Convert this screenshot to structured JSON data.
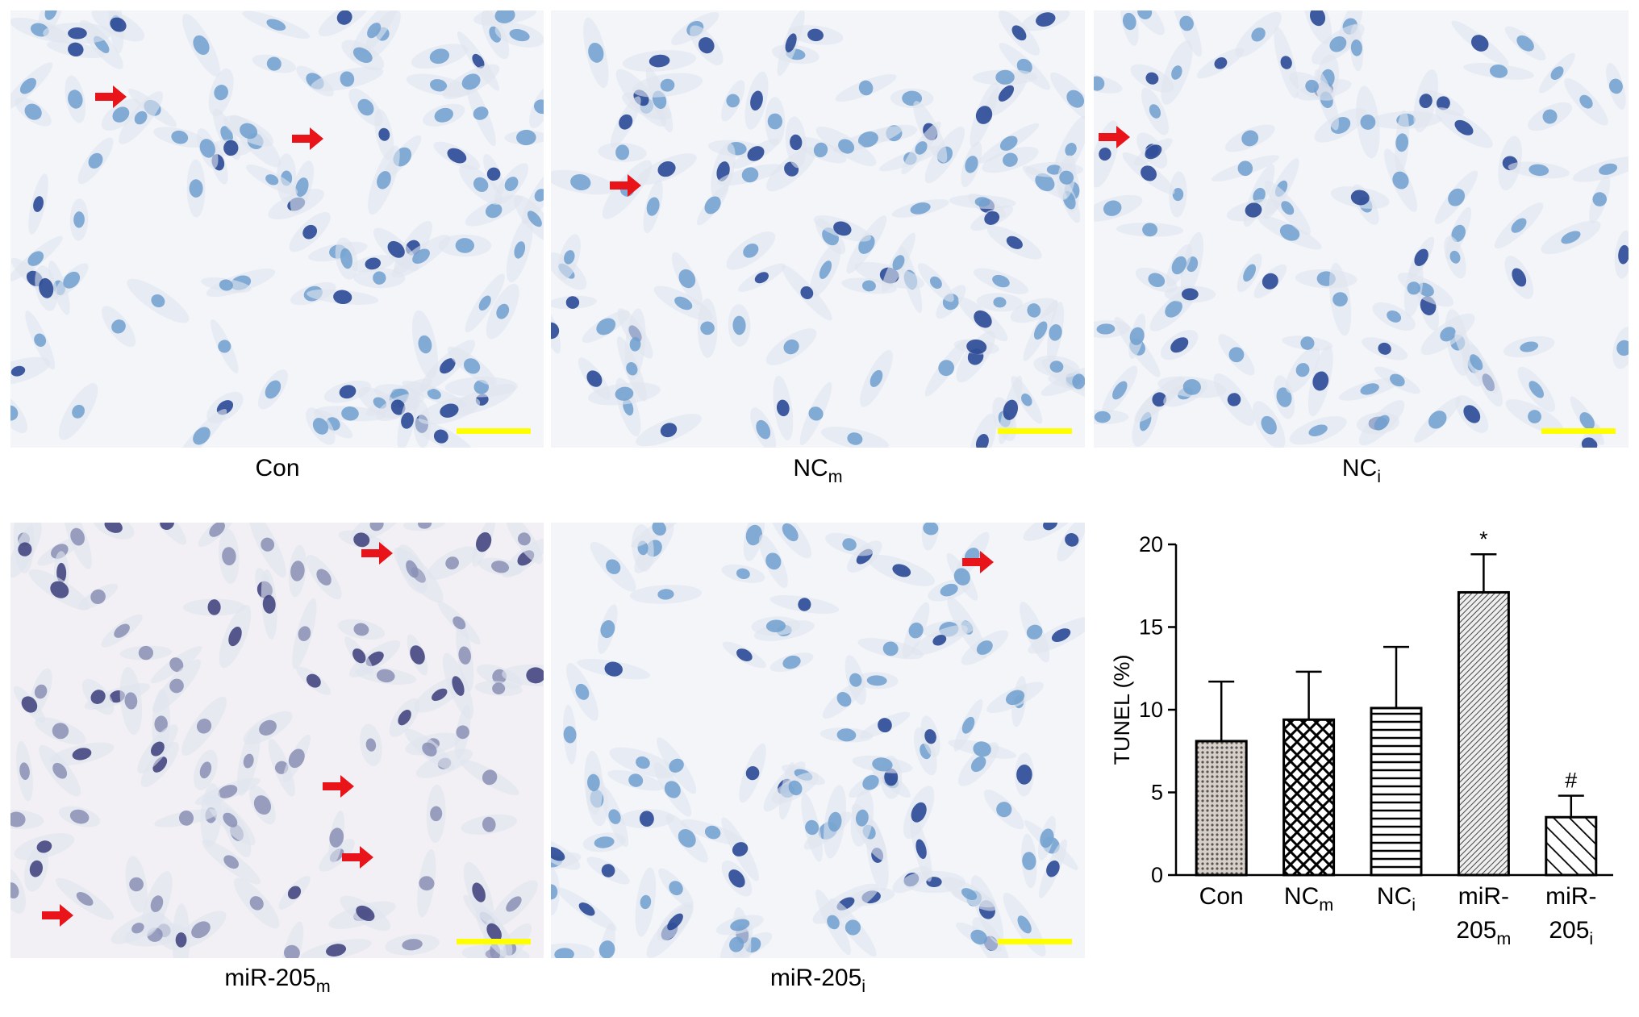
{
  "panels": [
    {
      "text": "Con"
    },
    {
      "text": "NC",
      "sub": "m"
    },
    {
      "text": "NC",
      "sub": "i"
    },
    {
      "text": "miR-205",
      "sub": "m"
    },
    {
      "text": "miR-205",
      "sub": "i"
    }
  ],
  "chart_data": {
    "type": "bar",
    "y_label": "TUNEL (%)",
    "categories": [
      {
        "lines": [
          "Con"
        ]
      },
      {
        "lines": [
          "NC"
        ],
        "sub": "m"
      },
      {
        "lines": [
          "NC"
        ],
        "sub": "i"
      },
      {
        "lines": [
          "miR-",
          "205"
        ],
        "sub": "m"
      },
      {
        "lines": [
          "miR-",
          "205"
        ],
        "sub": "i"
      }
    ],
    "values": [
      8.1,
      9.4,
      10.1,
      17.1,
      3.5
    ],
    "errors": [
      3.6,
      2.9,
      3.7,
      2.3,
      1.3
    ],
    "value_annotations": [
      null,
      null,
      null,
      "*",
      "#"
    ],
    "patterns": [
      "dots",
      "cross",
      "hlines",
      "dense",
      "diag"
    ],
    "color": "#000000",
    "ylim": [
      0,
      20
    ],
    "yticks": [
      0,
      5,
      10,
      15,
      20
    ],
    "grid": false
  }
}
